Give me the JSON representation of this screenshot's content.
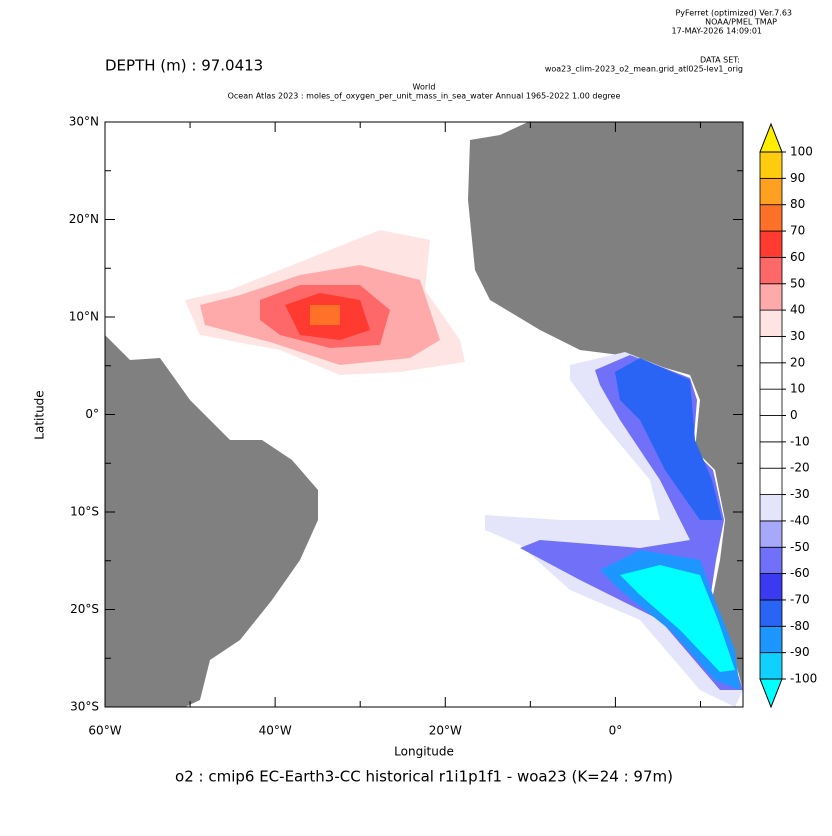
{
  "chart_data": {
    "type": "map",
    "header": [
      "PyFerret (optimized) Ver.7.63",
      "NOAA/PMEL TMAP",
      "17-MAY-2026 14:09:01"
    ],
    "dataset_label": "DATA SET:",
    "dataset": "woa23_clim-2023_o2_mean.grid_atl025-lev1_orig",
    "depth_label": "DEPTH (m) : 97.0413",
    "title": "World",
    "subtitle": "Ocean Atlas 2023 : moles_of_oxygen_per_unit_mass_in_sea_water Annual 1965-2022 1.00 degree",
    "xlabel": "Longitude",
    "ylabel": "Latitude",
    "caption": "o2 : cmip6 EC-Earth3-CC historical r1i1p1f1 - woa23  (K=24 : 97m)",
    "xlim": [
      -60,
      15
    ],
    "ylim": [
      -30,
      30
    ],
    "xticks": [
      {
        "value": -60,
        "label": "60°W"
      },
      {
        "value": -40,
        "label": "40°W"
      },
      {
        "value": -20,
        "label": "20°W"
      },
      {
        "value": 0,
        "label": "0°"
      }
    ],
    "xminor": [
      -50,
      -30,
      -10,
      10
    ],
    "yticks": [
      {
        "value": 30,
        "label": "30°N"
      },
      {
        "value": 20,
        "label": "20°N"
      },
      {
        "value": 10,
        "label": "10°N"
      },
      {
        "value": 0,
        "label": "0°"
      },
      {
        "value": -10,
        "label": "10°S"
      },
      {
        "value": -20,
        "label": "20°S"
      },
      {
        "value": -30,
        "label": "30°S"
      }
    ],
    "yminor": [
      25,
      15,
      5,
      -5,
      -15,
      -25
    ],
    "land_color": "#808080",
    "colorbar": {
      "levels": [
        -100,
        -90,
        -80,
        -70,
        -60,
        -50,
        -40,
        -30,
        -20,
        -10,
        0,
        10,
        20,
        30,
        40,
        50,
        60,
        70,
        80,
        90,
        100
      ],
      "colors": [
        "#00ffff",
        "#10d0ff",
        "#1e96ff",
        "#2a64f5",
        "#3a3af0",
        "#7070f8",
        "#a8a8fa",
        "#e4e4fa",
        "#ffffff",
        "#ffffff",
        "#ffffff",
        "#ffffff",
        "#ffffff",
        "#ffffff",
        "#ffe4e4",
        "#ffaaaa",
        "#ff6868",
        "#ff3a30",
        "#ff7028",
        "#ffa020",
        "#ffcc10",
        "#ffee00"
      ]
    }
  }
}
